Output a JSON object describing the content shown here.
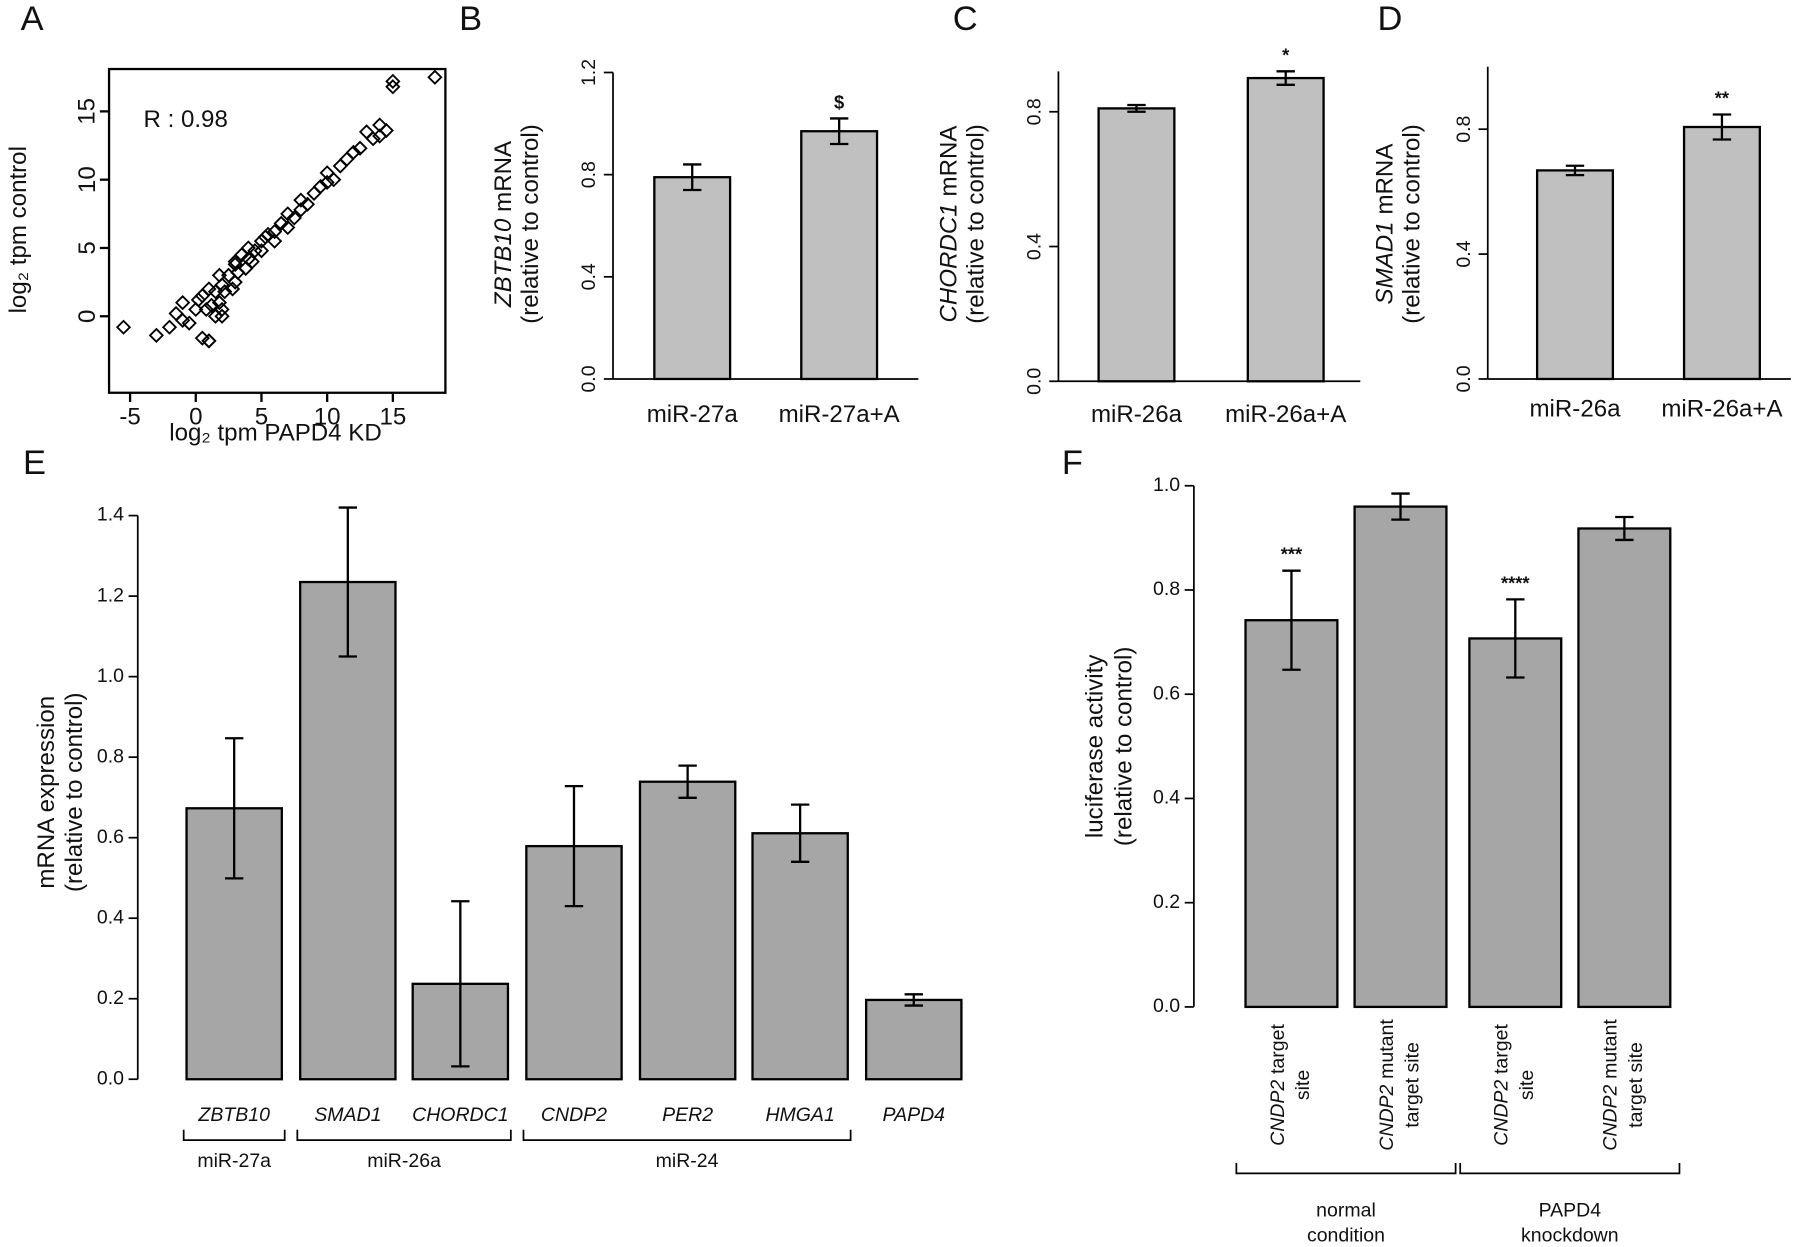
{
  "chart_data": [
    {
      "panel": "A",
      "type": "scatter",
      "annotation": "R : 0.98",
      "xlabel": "log₂ tpm PAPD4 KD",
      "ylabel": "log₂ tpm control",
      "xlim": [
        -6.6,
        19
      ],
      "ylim": [
        -5.6,
        18.1
      ],
      "xticks": [
        -5,
        0,
        5,
        10,
        15
      ],
      "yticks": [
        0,
        5,
        10,
        15
      ],
      "x": [
        -5.5,
        -3,
        -2,
        -1.5,
        -1,
        -0.5,
        0,
        0.2,
        0.5,
        0.8,
        1,
        1,
        1.2,
        1.5,
        1.5,
        1.8,
        2,
        2,
        2.2,
        2.5,
        2.8,
        3,
        3,
        3.2,
        3.5,
        3.8,
        4,
        4,
        4.3,
        4.5,
        5,
        5,
        5.3,
        5.5,
        6,
        6,
        6.5,
        7,
        7,
        7.5,
        8,
        8,
        8.5,
        9,
        9.5,
        10,
        10,
        10.5,
        11,
        11.5,
        12,
        12.5,
        13,
        13.5,
        14,
        14,
        14.5,
        15,
        15,
        18.2,
        1,
        0.5,
        2,
        3,
        1.8,
        -1
      ],
      "y": [
        -0.8,
        -1.4,
        -0.8,
        0.2,
        1,
        -0.5,
        0.5,
        1.2,
        -1.6,
        0.5,
        -1.8,
        2,
        0.8,
        1.8,
        0,
        1,
        2.3,
        0.5,
        1.8,
        3,
        2,
        3.8,
        2.5,
        3.2,
        4.5,
        3.5,
        4.2,
        5,
        4,
        4.8,
        5.5,
        4.8,
        5.8,
        6,
        6.2,
        5.5,
        6.8,
        7.5,
        6.5,
        7.2,
        8.5,
        7.8,
        8.2,
        9,
        9.5,
        10.5,
        9.8,
        10,
        11,
        11.5,
        12,
        12.3,
        13.5,
        13,
        14,
        13.2,
        13.6,
        16.8,
        17.2,
        17.5,
        -1.8,
        1.5,
        0,
        4,
        3,
        -0.3
      ],
      "color": "#000000"
    },
    {
      "panel": "B",
      "type": "bar",
      "ylabel_gene": "ZBTB10",
      "ylabel": "mRNA",
      "ylabel2": "(relative to control)",
      "categories": [
        "miR-27a",
        "miR-27a+A"
      ],
      "values": [
        0.79,
        0.97
      ],
      "errors": [
        0.05,
        0.05
      ],
      "annotations": [
        null,
        "$"
      ],
      "ylim": [
        0,
        1.2
      ],
      "yticks": [
        {
          "value": 0,
          "label": "0.0"
        },
        0.4,
        0.8,
        1.2
      ],
      "color": "#c0c0c0"
    },
    {
      "panel": "C",
      "type": "bar",
      "ylabel_gene": "CHORDC1",
      "ylabel": "mRNA",
      "ylabel2": "(relative to control)",
      "categories": [
        "miR-26a",
        "miR-26a+A"
      ],
      "values": [
        0.81,
        0.9
      ],
      "errors": [
        0.01,
        0.02
      ],
      "annotations": [
        null,
        "*"
      ],
      "ylim": [
        0,
        0.92
      ],
      "yticks": [
        {
          "value": 0,
          "label": "0.0"
        },
        0.4,
        0.8
      ],
      "color": "#c0c0c0"
    },
    {
      "panel": "D",
      "type": "bar",
      "ylabel_gene": "SMAD1",
      "ylabel": "mRNA",
      "ylabel2": "(relative to control)",
      "categories": [
        "miR-26a",
        "miR-26a+A"
      ],
      "values": [
        0.668,
        0.807
      ],
      "errors": [
        0.015,
        0.04
      ],
      "annotations": [
        null,
        "**"
      ],
      "ylim": [
        0,
        1.0
      ],
      "yticks": [
        {
          "value": 0,
          "label": "0.0"
        },
        0.4,
        0.8
      ],
      "color": "#c0c0c0"
    },
    {
      "panel": "E",
      "type": "bar",
      "ylabel": "mRNA expression",
      "ylabel2": "(relative to control)",
      "categories": [
        "ZBTB10",
        "SMAD1",
        "CHORDC1",
        "CNDP2",
        "PER2",
        "HMGA1",
        "PAPD4"
      ],
      "values": [
        0.673,
        1.235,
        0.237,
        0.579,
        0.739,
        0.611,
        0.197
      ],
      "errors": [
        0.174,
        0.185,
        0.205,
        0.149,
        0.04,
        0.071,
        0.014
      ],
      "groups": [
        {
          "name": "miR-27a",
          "span": [
            0,
            0
          ]
        },
        {
          "name": "miR-26a",
          "span": [
            1,
            2
          ]
        },
        {
          "name": "miR-24",
          "span": [
            3,
            5
          ]
        }
      ],
      "ylim": [
        0,
        1.4
      ],
      "yticks": [
        {
          "value": 0,
          "label": "0.0"
        },
        0.2,
        0.4,
        0.6,
        0.8,
        {
          "value": 1,
          "label": "1.0"
        },
        1.2,
        1.4
      ],
      "color": "#a6a6a6"
    },
    {
      "panel": "F",
      "type": "bar",
      "ylabel": "luciferase activity",
      "ylabel2": "(relative to control)",
      "categories": [
        {
          "gene": "CNDP2",
          "line1": "target",
          "line2": "site"
        },
        {
          "gene": "CNDP2",
          "line1": "mutant",
          "line2": "target site"
        },
        {
          "gene": "CNDP2",
          "line1": "target",
          "line2": "site"
        },
        {
          "gene": "CNDP2",
          "line1": "mutant",
          "line2": "target site"
        }
      ],
      "values": [
        0.742,
        0.96,
        0.707,
        0.918
      ],
      "errors": [
        0.095,
        0.025,
        0.075,
        0.022
      ],
      "annotations": [
        "***",
        null,
        "****",
        null
      ],
      "groups": [
        {
          "name": [
            "normal",
            "condition"
          ],
          "span": [
            0,
            1
          ]
        },
        {
          "name": [
            "PAPD4",
            "knockdown"
          ],
          "span": [
            2,
            3
          ]
        }
      ],
      "ylim": [
        0,
        1.0
      ],
      "yticks": [
        {
          "value": 0,
          "label": "0.0"
        },
        0.2,
        0.4,
        0.6,
        0.8,
        {
          "value": 1,
          "label": "1.0"
        }
      ],
      "color": "#a6a6a6"
    }
  ]
}
